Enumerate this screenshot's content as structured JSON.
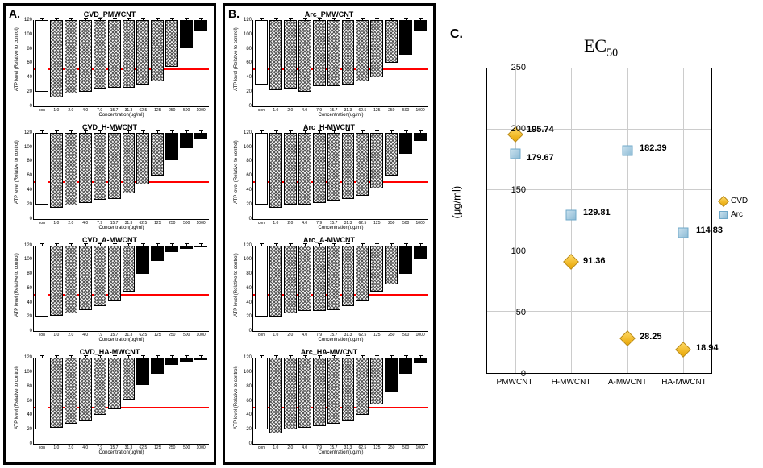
{
  "panel_a_label": "A.",
  "panel_b_label": "B.",
  "panel_c_label": "C.",
  "bar_ymax": 120,
  "bar_ref_level": 50,
  "bar_ref_color": "#ff0000",
  "bar_y_label": "ATP level\n(Relative to control)",
  "bar_x_label": "Concentration(ug/ml)",
  "bar_categories": [
    "con",
    "1.0",
    "2.0",
    "4.0",
    "7.9",
    "15.7",
    "31.3",
    "62.5",
    "125",
    "250",
    "500",
    "1000"
  ],
  "bar_yticks": [
    0,
    20,
    40,
    60,
    80,
    100,
    120
  ],
  "bar_colors": {
    "control": "#ffffff",
    "hatch": "#f0f0f0",
    "solid": "#000000"
  },
  "panels_a": [
    {
      "title": "CVD_PMWCNT",
      "values": [
        100,
        108,
        102,
        100,
        95,
        94,
        94,
        90,
        85,
        65,
        38,
        15
      ],
      "styles": [
        "w",
        "h",
        "h",
        "h",
        "h",
        "h",
        "h",
        "h",
        "h",
        "h",
        "b",
        "b"
      ]
    },
    {
      "title": "CVD_H-MWCNT",
      "values": [
        100,
        105,
        102,
        98,
        94,
        92,
        85,
        72,
        60,
        38,
        22,
        8
      ],
      "styles": [
        "w",
        "h",
        "h",
        "h",
        "h",
        "h",
        "h",
        "h",
        "h",
        "b",
        "b",
        "b"
      ]
    },
    {
      "title": "CVD_A-MWCNT",
      "values": [
        100,
        98,
        95,
        90,
        85,
        78,
        65,
        40,
        22,
        10,
        5,
        3
      ],
      "styles": [
        "w",
        "h",
        "h",
        "h",
        "h",
        "h",
        "h",
        "b",
        "b",
        "b",
        "b",
        "b"
      ]
    },
    {
      "title": "CVD_HA-MWCNT",
      "values": [
        100,
        98,
        92,
        88,
        80,
        72,
        58,
        38,
        22,
        10,
        5,
        3
      ],
      "styles": [
        "w",
        "h",
        "h",
        "h",
        "h",
        "h",
        "h",
        "b",
        "b",
        "b",
        "b",
        "b"
      ]
    }
  ],
  "panels_b": [
    {
      "title": "Arc_PMWCNT",
      "values": [
        90,
        98,
        95,
        100,
        92,
        92,
        90,
        85,
        80,
        60,
        48,
        15
      ],
      "styles": [
        "w",
        "h",
        "h",
        "h",
        "h",
        "h",
        "h",
        "h",
        "h",
        "h",
        "b",
        "b"
      ]
    },
    {
      "title": "Arc_H-MWCNT",
      "values": [
        100,
        105,
        100,
        100,
        98,
        95,
        92,
        88,
        78,
        60,
        30,
        12
      ],
      "styles": [
        "w",
        "h",
        "h",
        "h",
        "h",
        "h",
        "h",
        "h",
        "h",
        "h",
        "b",
        "b"
      ]
    },
    {
      "title": "Arc_A-MWCNT",
      "values": [
        100,
        100,
        95,
        92,
        92,
        90,
        85,
        78,
        65,
        55,
        40,
        18
      ],
      "styles": [
        "w",
        "h",
        "h",
        "h",
        "h",
        "h",
        "h",
        "h",
        "h",
        "h",
        "b",
        "b"
      ]
    },
    {
      "title": "Arc_HA-MWCNT",
      "values": [
        100,
        105,
        100,
        98,
        95,
        92,
        88,
        80,
        65,
        48,
        22,
        8
      ],
      "styles": [
        "w",
        "h",
        "h",
        "h",
        "h",
        "h",
        "h",
        "h",
        "h",
        "b",
        "b",
        "b"
      ]
    }
  ],
  "scatter": {
    "title_main": "EC",
    "title_sub": "50",
    "y_label": "(μg/ml)",
    "ymax": 250,
    "ymin": 0,
    "yticks": [
      0,
      50,
      100,
      150,
      200,
      250
    ],
    "categories": [
      "PMWCNT",
      "H-MWCNT",
      "A-MWCNT",
      "HA-MWCNT"
    ],
    "series": [
      {
        "name": "CVD",
        "marker": "diamond",
        "color": "#e8a500",
        "points": [
          195.74,
          91.36,
          28.25,
          18.94
        ]
      },
      {
        "name": "Arc",
        "marker": "square",
        "color": "#8fbcd6",
        "points": [
          179.67,
          129.81,
          182.39,
          114.83
        ]
      }
    ],
    "labels": [
      {
        "text": "195.74",
        "x": 0,
        "y": 195.74,
        "dx": 14,
        "dy": -6
      },
      {
        "text": "179.67",
        "x": 0,
        "y": 179.67,
        "dx": 14,
        "dy": 4
      },
      {
        "text": "91.36",
        "x": 1,
        "y": 91.36,
        "dx": 14,
        "dy": -2
      },
      {
        "text": "129.81",
        "x": 1,
        "y": 129.81,
        "dx": 14,
        "dy": -4
      },
      {
        "text": "28.25",
        "x": 2,
        "y": 28.25,
        "dx": 14,
        "dy": -4
      },
      {
        "text": "182.39",
        "x": 2,
        "y": 182.39,
        "dx": 14,
        "dy": -4
      },
      {
        "text": "18.94",
        "x": 3,
        "y": 18.94,
        "dx": 14,
        "dy": -4
      },
      {
        "text": "114.83",
        "x": 3,
        "y": 114.83,
        "dx": 14,
        "dy": -4
      }
    ],
    "legend": [
      {
        "label": "CVD",
        "marker": "diamond"
      },
      {
        "label": "Arc",
        "marker": "square"
      }
    ]
  }
}
